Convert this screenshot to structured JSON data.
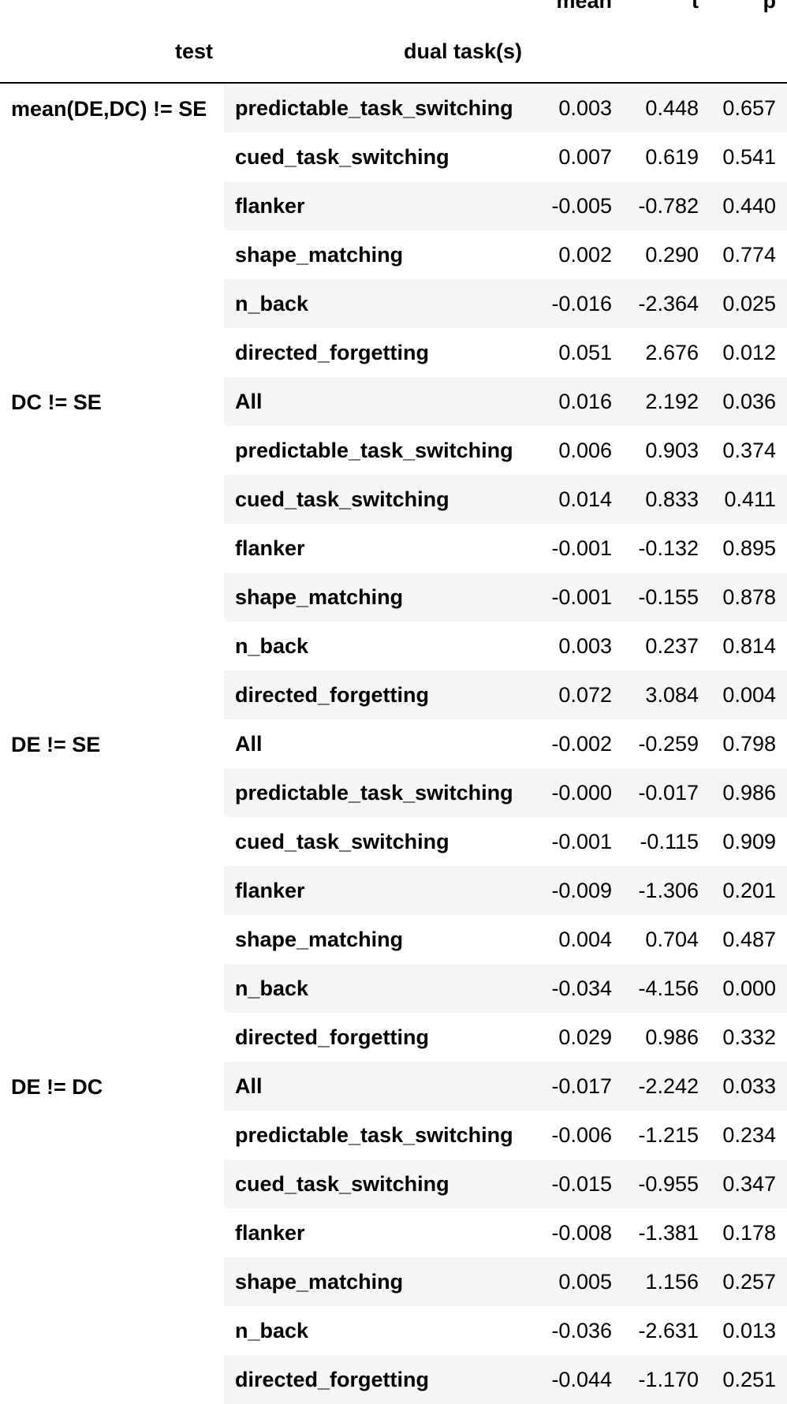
{
  "columns": {
    "index_names": [
      "test",
      "dual task(s)"
    ],
    "values": [
      "mean",
      "t",
      "p"
    ]
  },
  "groups": [
    {
      "test": "mean(DE,DC) != SE",
      "rows": [
        {
          "task": "predictable_task_switching",
          "mean": "0.003",
          "t": "0.448",
          "p": "0.657"
        },
        {
          "task": "cued_task_switching",
          "mean": "0.007",
          "t": "0.619",
          "p": "0.541"
        },
        {
          "task": "flanker",
          "mean": "-0.005",
          "t": "-0.782",
          "p": "0.440"
        },
        {
          "task": "shape_matching",
          "mean": "0.002",
          "t": "0.290",
          "p": "0.774"
        },
        {
          "task": "n_back",
          "mean": "-0.016",
          "t": "-2.364",
          "p": "0.025"
        },
        {
          "task": "directed_forgetting",
          "mean": "0.051",
          "t": "2.676",
          "p": "0.012"
        }
      ]
    },
    {
      "test": "DC != SE",
      "rows": [
        {
          "task": "All",
          "mean": "0.016",
          "t": "2.192",
          "p": "0.036"
        },
        {
          "task": "predictable_task_switching",
          "mean": "0.006",
          "t": "0.903",
          "p": "0.374"
        },
        {
          "task": "cued_task_switching",
          "mean": "0.014",
          "t": "0.833",
          "p": "0.411"
        },
        {
          "task": "flanker",
          "mean": "-0.001",
          "t": "-0.132",
          "p": "0.895"
        },
        {
          "task": "shape_matching",
          "mean": "-0.001",
          "t": "-0.155",
          "p": "0.878"
        },
        {
          "task": "n_back",
          "mean": "0.003",
          "t": "0.237",
          "p": "0.814"
        },
        {
          "task": "directed_forgetting",
          "mean": "0.072",
          "t": "3.084",
          "p": "0.004"
        }
      ]
    },
    {
      "test": "DE != SE",
      "rows": [
        {
          "task": "All",
          "mean": "-0.002",
          "t": "-0.259",
          "p": "0.798"
        },
        {
          "task": "predictable_task_switching",
          "mean": "-0.000",
          "t": "-0.017",
          "p": "0.986"
        },
        {
          "task": "cued_task_switching",
          "mean": "-0.001",
          "t": "-0.115",
          "p": "0.909"
        },
        {
          "task": "flanker",
          "mean": "-0.009",
          "t": "-1.306",
          "p": "0.201"
        },
        {
          "task": "shape_matching",
          "mean": "0.004",
          "t": "0.704",
          "p": "0.487"
        },
        {
          "task": "n_back",
          "mean": "-0.034",
          "t": "-4.156",
          "p": "0.000"
        },
        {
          "task": "directed_forgetting",
          "mean": "0.029",
          "t": "0.986",
          "p": "0.332"
        }
      ]
    },
    {
      "test": "DE != DC",
      "rows": [
        {
          "task": "All",
          "mean": "-0.017",
          "t": "-2.242",
          "p": "0.033"
        },
        {
          "task": "predictable_task_switching",
          "mean": "-0.006",
          "t": "-1.215",
          "p": "0.234"
        },
        {
          "task": "cued_task_switching",
          "mean": "-0.015",
          "t": "-0.955",
          "p": "0.347"
        },
        {
          "task": "flanker",
          "mean": "-0.008",
          "t": "-1.381",
          "p": "0.178"
        },
        {
          "task": "shape_matching",
          "mean": "0.005",
          "t": "1.156",
          "p": "0.257"
        },
        {
          "task": "n_back",
          "mean": "-0.036",
          "t": "-2.631",
          "p": "0.013"
        },
        {
          "task": "directed_forgetting",
          "mean": "-0.044",
          "t": "-1.170",
          "p": "0.251"
        }
      ]
    }
  ],
  "colors": {
    "stripe": "#f5f5f5",
    "background": "#ffffff",
    "rule": "#000000"
  }
}
